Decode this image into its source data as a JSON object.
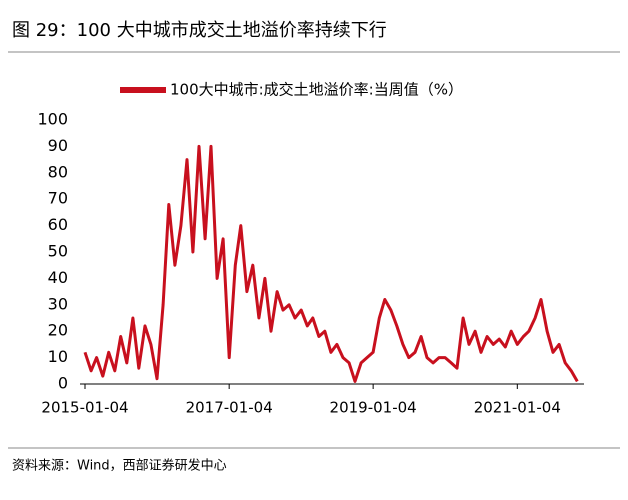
{
  "chart_data": {
    "type": "line",
    "title": "图 29：100 大中城市成交土地溢价率持续下行",
    "source": "资料来源：Wind，西部证券研发中心",
    "x": [
      "2015-01-04",
      "2015-02-04",
      "2015-03-04",
      "2015-04-04",
      "2015-05-04",
      "2015-06-04",
      "2015-07-04",
      "2015-08-04",
      "2015-09-04",
      "2015-10-04",
      "2015-11-04",
      "2015-12-04",
      "2016-01-04",
      "2016-02-04",
      "2016-03-04",
      "2016-04-04",
      "2016-05-04",
      "2016-06-04",
      "2016-07-04",
      "2016-08-04",
      "2016-09-04",
      "2016-10-04",
      "2016-11-04",
      "2016-12-04",
      "2017-01-04",
      "2017-02-04",
      "2017-03-04",
      "2017-04-04",
      "2017-05-04",
      "2017-06-04",
      "2017-07-04",
      "2017-08-04",
      "2017-09-04",
      "2017-10-04",
      "2017-11-04",
      "2017-12-04",
      "2018-01-04",
      "2018-02-04",
      "2018-03-04",
      "2018-04-04",
      "2018-05-04",
      "2018-06-04",
      "2018-07-04",
      "2018-08-04",
      "2018-09-04",
      "2018-10-04",
      "2018-11-04",
      "2018-12-04",
      "2019-01-04",
      "2019-02-04",
      "2019-03-04",
      "2019-04-04",
      "2019-05-04",
      "2019-06-04",
      "2019-07-04",
      "2019-08-04",
      "2019-09-04",
      "2019-10-04",
      "2019-11-04",
      "2019-12-04",
      "2020-01-04",
      "2020-02-04",
      "2020-03-04",
      "2020-04-04",
      "2020-05-04",
      "2020-06-04",
      "2020-07-04",
      "2020-08-04",
      "2020-09-04",
      "2020-10-04",
      "2020-11-04",
      "2020-12-04",
      "2021-01-04",
      "2021-02-04",
      "2021-03-04",
      "2021-04-04",
      "2021-05-04",
      "2021-06-04",
      "2021-07-04",
      "2021-08-04",
      "2021-09-04",
      "2021-10-04",
      "2021-11-04"
    ],
    "series": [
      {
        "name": "100大中城市:成交土地溢价率:当周值（%）",
        "color": "#c8101e",
        "values": [
          12,
          5,
          10,
          3,
          12,
          5,
          18,
          8,
          25,
          6,
          22,
          15,
          2,
          30,
          68,
          45,
          60,
          85,
          50,
          90,
          55,
          90,
          40,
          55,
          10,
          45,
          60,
          35,
          45,
          25,
          40,
          20,
          35,
          28,
          30,
          25,
          28,
          22,
          25,
          18,
          20,
          12,
          15,
          10,
          8,
          1,
          8,
          10,
          12,
          25,
          32,
          28,
          22,
          15,
          10,
          12,
          18,
          10,
          8,
          10,
          10,
          8,
          6,
          25,
          15,
          20,
          12,
          18,
          15,
          17,
          14,
          20,
          15,
          18,
          20,
          25,
          32,
          20,
          12,
          15,
          8,
          5,
          1
        ]
      }
    ],
    "xlim": [
      "2015-01-04",
      "2021-11-28"
    ],
    "xticks": [
      "2015-01-04",
      "2017-01-04",
      "2019-01-04",
      "2021-01-04"
    ],
    "ylim": [
      0,
      100
    ],
    "yticks": [
      0,
      10,
      20,
      30,
      40,
      50,
      60,
      70,
      80,
      90,
      100
    ],
    "grid": false
  }
}
